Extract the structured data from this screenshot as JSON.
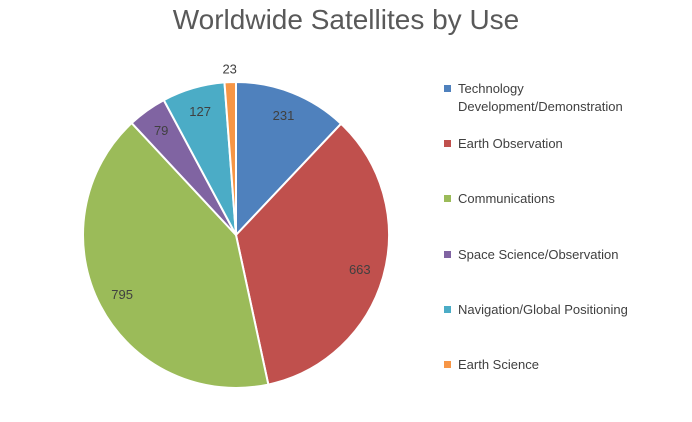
{
  "chart_data": {
    "type": "pie",
    "title": "Worldwide Satellites by Use",
    "categories": [
      "Technology Development/Demonstration",
      "Earth Observation",
      "Communications",
      "Space Science/Observation",
      "Navigation/Global Positioning",
      "Earth Science"
    ],
    "values": [
      231,
      663,
      795,
      79,
      127,
      23
    ],
    "colors": [
      "#4f81bd",
      "#c0504d",
      "#9bbb59",
      "#8064a2",
      "#4bacc6",
      "#f79646"
    ],
    "data_labels": [
      "231",
      "663",
      "795",
      "79",
      "127",
      "23"
    ],
    "legend_placement": "right",
    "start_angle": "12 o'clock",
    "direction": "clockwise"
  }
}
